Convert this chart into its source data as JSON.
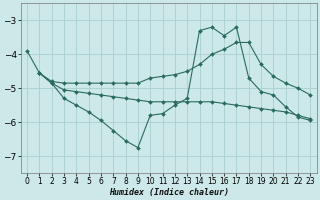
{
  "xlabel": "Humidex (Indice chaleur)",
  "bg_color": "#cce8e8",
  "line_color": "#2a6b5e",
  "grid_color": "#aacfcf",
  "xlim": [
    -0.5,
    23.5
  ],
  "ylim": [
    -7.5,
    -2.5
  ],
  "yticks": [
    -7,
    -6,
    -5,
    -4,
    -3
  ],
  "xticks": [
    0,
    1,
    2,
    3,
    4,
    5,
    6,
    7,
    8,
    9,
    10,
    11,
    12,
    13,
    14,
    15,
    16,
    17,
    18,
    19,
    20,
    21,
    22,
    23
  ],
  "series": [
    {
      "x": [
        0,
        1,
        2,
        3,
        4,
        5,
        6,
        7,
        8,
        9,
        10,
        11,
        12,
        13,
        14,
        15,
        16,
        17,
        18,
        19,
        20,
        21,
        22,
        23
      ],
      "y": [
        -3.9,
        -4.55,
        -4.8,
        -4.85,
        -4.85,
        -4.85,
        -4.85,
        -4.85,
        -4.85,
        -4.85,
        -4.7,
        -4.65,
        -4.6,
        -4.5,
        -4.3,
        -4.0,
        -3.85,
        -3.65,
        -3.65,
        -4.3,
        -4.65,
        -4.85,
        -5.0,
        -5.2
      ]
    },
    {
      "x": [
        1,
        2,
        3,
        4,
        5,
        6,
        7,
        8,
        9,
        10,
        11,
        12,
        13,
        14,
        15,
        16,
        17,
        18,
        19,
        20,
        21,
        22,
        23
      ],
      "y": [
        -4.55,
        -4.85,
        -5.05,
        -5.1,
        -5.15,
        -5.2,
        -5.25,
        -5.3,
        -5.35,
        -5.4,
        -5.4,
        -5.4,
        -5.4,
        -5.4,
        -5.4,
        -5.45,
        -5.5,
        -5.55,
        -5.6,
        -5.65,
        -5.7,
        -5.8,
        -5.9
      ]
    },
    {
      "x": [
        1,
        2,
        3,
        4,
        5,
        6,
        7,
        8,
        9,
        10,
        11,
        12,
        13,
        14,
        15,
        16,
        17,
        18,
        19,
        20,
        21,
        22,
        23
      ],
      "y": [
        -4.55,
        -4.85,
        -5.3,
        -5.5,
        -5.7,
        -5.95,
        -6.25,
        -6.55,
        -6.75,
        -5.8,
        -5.75,
        -5.5,
        -5.3,
        -3.3,
        -3.2,
        -3.45,
        -3.2,
        -4.7,
        -5.1,
        -5.2,
        -5.55,
        -5.85,
        -5.95
      ]
    }
  ]
}
